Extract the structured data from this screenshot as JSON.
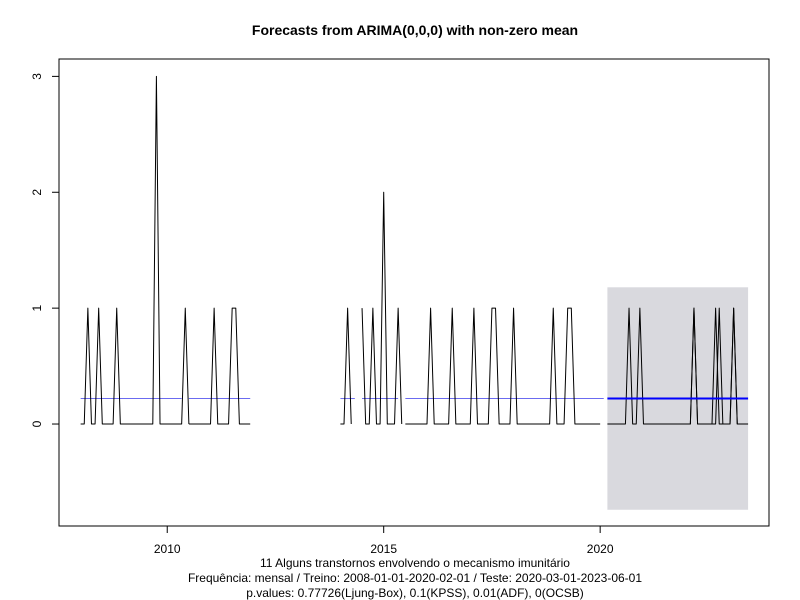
{
  "chart_data": {
    "type": "line",
    "title": "Forecasts from ARIMA(0,0,0) with non-zero mean",
    "xlabel": "",
    "ylabel": "",
    "xlim": [
      2007.5,
      2023.9
    ],
    "ylim": [
      -0.88,
      3.15
    ],
    "x_ticks": [
      2010,
      2015,
      2020
    ],
    "x_tick_labels": [
      "2010",
      "2015",
      "2020"
    ],
    "y_ticks": [
      0,
      1,
      2,
      3
    ],
    "y_tick_labels": [
      "0",
      "1",
      "2",
      "3"
    ],
    "grid": false,
    "caption_lines": [
      "11 Alguns transtornos envolvendo o mecanismo imunitário",
      "Frequência: mensal / Treino: 2008-01-01-2020-02-01 / Teste: 2020-03-01-2023-06-01",
      "p.values: 0.77726(Ljung-Box), 0.1(KPSS), 0.01(ADF), 0(OCSB)"
    ],
    "series": [
      {
        "name": "observed",
        "color": "#000000",
        "segments": [
          {
            "start": 2008.0,
            "values": [
              0,
              0,
              1,
              0,
              0,
              1,
              0,
              0,
              0,
              0,
              1,
              0,
              0,
              0,
              0,
              0,
              0,
              0,
              0,
              0,
              0,
              3,
              0,
              0,
              0,
              0,
              0,
              0,
              0,
              1,
              0
            ]
          },
          {
            "start": 2010.5,
            "values": [
              0,
              0,
              0,
              0,
              0,
              0,
              0,
              1,
              0,
              0,
              0,
              0,
              1,
              1,
              0,
              0,
              0,
              0
            ]
          },
          {
            "start": 2014.0,
            "values": [
              0,
              0,
              1,
              0
            ]
          },
          {
            "start": 2014.5,
            "values": [
              1,
              0,
              0,
              1,
              0,
              0,
              2,
              0,
              0,
              0,
              1,
              0
            ]
          },
          {
            "start": 2015.5,
            "values": [
              0,
              0,
              0,
              0,
              0,
              0,
              0,
              1,
              0,
              0,
              0,
              0,
              0,
              1,
              0,
              0,
              0,
              0,
              0,
              1,
              0,
              0,
              0,
              0,
              1,
              1,
              0,
              0,
              0,
              0,
              1,
              0,
              0,
              0,
              0,
              0,
              0,
              0,
              0,
              0,
              0,
              1,
              0,
              0,
              0,
              1,
              1,
              0,
              0,
              0,
              0,
              0,
              0,
              0,
              0
            ]
          },
          {
            "start": 2022.0,
            "values": [
              0,
              0,
              1,
              0,
              0,
              0,
              0,
              0,
              1,
              0,
              0,
              0,
              0,
              1,
              0,
              0,
              0,
              0
            ]
          }
        ]
      },
      {
        "name": "fitted",
        "color": "#6b6bf0",
        "segments": [
          {
            "start": 2008.0,
            "end": 2010.333,
            "value": 0.22
          },
          {
            "start": 2010.5,
            "end": 2011.917,
            "value": 0.22
          },
          {
            "start": 2014.0,
            "end": 2014.333,
            "value": 0.22
          },
          {
            "start": 2014.5,
            "end": 2015.333,
            "value": 0.22
          },
          {
            "start": 2015.5,
            "end": 2020.083,
            "value": 0.22
          }
        ]
      },
      {
        "name": "forecast_mean",
        "color": "#0000ff",
        "start": 2020.167,
        "end": 2023.417,
        "value": 0.22
      }
    ],
    "prediction_interval": {
      "color": "#d9d9de",
      "x_start": 2020.167,
      "x_end": 2023.417,
      "lower": -0.74,
      "upper": 1.18
    },
    "forecast_observed": {
      "name": "test",
      "color": "#000000",
      "start": 2020.167,
      "values": [
        0,
        0,
        0,
        0,
        0,
        0,
        1,
        0,
        0,
        1,
        0,
        0,
        0,
        0,
        0,
        0,
        0,
        0,
        0,
        0,
        0,
        0,
        0,
        0,
        1,
        0,
        0,
        0,
        0,
        0,
        0,
        1,
        0,
        0,
        0,
        1,
        0,
        0,
        0
      ]
    }
  }
}
